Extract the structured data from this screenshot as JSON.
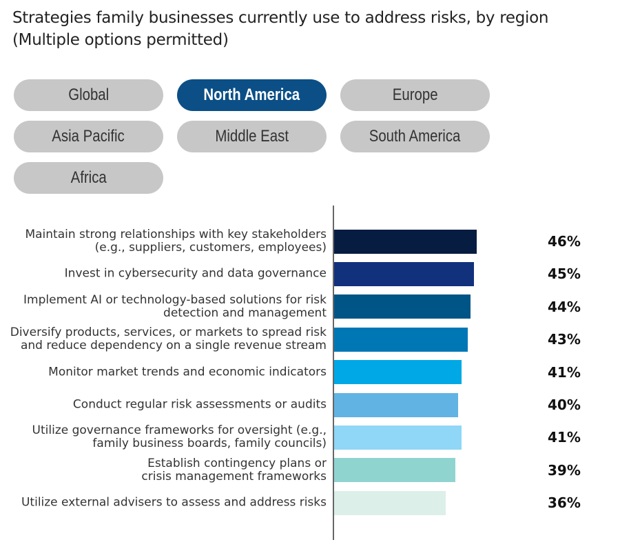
{
  "region_filter": {
    "options": [
      "Global",
      "North America",
      "Europe",
      "Asia Pacific",
      "Middle East",
      "South America",
      "Africa"
    ],
    "selected": 1
  },
  "chart_data": {
    "type": "bar",
    "orientation": "horizontal",
    "title": "Strategies family businesses currently use to address risks, by region\n(Multiple options permitted)",
    "categories": [
      "Maintain strong relationships with key stakeholders\n(e.g., suppliers, customers, employees)",
      "Invest in cybersecurity and data governance",
      "Implement AI or technology-based solutions for risk\ndetection and management",
      "Diversify products, services, or markets to spread risk\nand reduce dependency on a single revenue stream",
      "Monitor market trends and economic indicators",
      "Conduct regular risk assessments or audits",
      "Utilize governance frameworks for oversight (e.g.,\nfamily business boards, family councils)",
      "Establish contingency plans or\ncrisis management frameworks",
      "Utilize external advisers to assess and address risks"
    ],
    "values": [
      46,
      45,
      44,
      43,
      41,
      40,
      41,
      39,
      36
    ],
    "value_labels": [
      "46%",
      "45%",
      "44%",
      "43%",
      "41%",
      "40%",
      "41%",
      "39%",
      "36%"
    ],
    "colors": [
      "#071c41",
      "#12317d",
      "#005587",
      "#0077b5",
      "#00a8e6",
      "#61b3e4",
      "#8fd6f7",
      "#8fd4cf",
      "#dcefe9"
    ]
  }
}
